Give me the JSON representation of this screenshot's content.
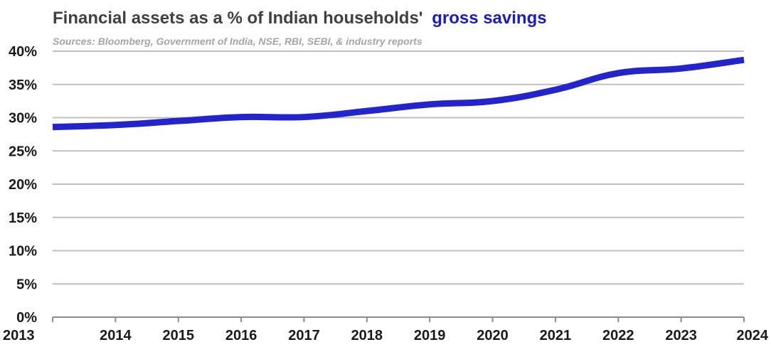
{
  "chart_data": {
    "type": "line",
    "title": "Financial assets as a % of Indian households'",
    "title_highlight": "gross savings",
    "subtitle": "Sources: Bloomberg, Government of India, NSE, RBI, SEBI, & industry reports",
    "x": [
      2013,
      2014,
      2015,
      2016,
      2017,
      2018,
      2019,
      2020,
      2021,
      2022,
      2023,
      2024
    ],
    "x_tick_labels": [
      "2013",
      "2014",
      "2015",
      "2016",
      "2017",
      "2018",
      "2019",
      "2020",
      "2021",
      "2022",
      "2023",
      "2024"
    ],
    "y_tick_labels": [
      "0%",
      "5%",
      "10%",
      "15%",
      "20%",
      "25%",
      "30%",
      "35%",
      "40%"
    ],
    "y_ticks": [
      0,
      5,
      10,
      15,
      20,
      25,
      30,
      35,
      40
    ],
    "ylim": [
      0,
      40
    ],
    "xlim": [
      2013,
      2024
    ],
    "grid": true,
    "legend": "none",
    "series": [
      {
        "values": [
          28.6,
          28.9,
          29.5,
          30.1,
          30.1,
          31.0,
          32.0,
          32.5,
          34.2,
          36.7,
          37.4,
          38.7
        ],
        "color": "#2424cc"
      }
    ],
    "colors": {
      "title": "#404040",
      "accent": "#1a1acc",
      "subtitle": "#a6a6a6",
      "grid": "#bfbfbf",
      "line": "#2424cc"
    }
  }
}
